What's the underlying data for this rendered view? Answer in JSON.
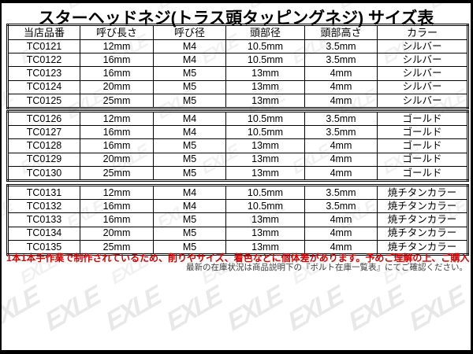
{
  "title": "スターヘッドネジ(トラス頭タッピングネジ) サイズ表",
  "table": {
    "headers": [
      "当店品番",
      "呼び長さ",
      "呼び径",
      "頭部径",
      "頭部高さ",
      "カラー"
    ],
    "groups": [
      {
        "rows": [
          [
            "TC0121",
            "12mm",
            "M4",
            "10.5mm",
            "3.5mm",
            "シルバー"
          ],
          [
            "TC0122",
            "16mm",
            "M4",
            "10.5mm",
            "3.5mm",
            "シルバー"
          ],
          [
            "TC0123",
            "16mm",
            "M5",
            "13mm",
            "4mm",
            "シルバー"
          ],
          [
            "TC0124",
            "20mm",
            "M5",
            "13mm",
            "4mm",
            "シルバー"
          ],
          [
            "TC0125",
            "25mm",
            "M5",
            "13mm",
            "4mm",
            "シルバー"
          ]
        ]
      },
      {
        "rows": [
          [
            "TC0126",
            "12mm",
            "M4",
            "10.5mm",
            "3.5mm",
            "ゴールド"
          ],
          [
            "TC0127",
            "16mm",
            "M4",
            "10.5mm",
            "3.5mm",
            "ゴールド"
          ],
          [
            "TC0128",
            "16mm",
            "M5",
            "13mm",
            "4mm",
            "ゴールド"
          ],
          [
            "TC0129",
            "20mm",
            "M5",
            "13mm",
            "4mm",
            "ゴールド"
          ],
          [
            "TC0130",
            "25mm",
            "M5",
            "13mm",
            "4mm",
            "ゴールド"
          ]
        ]
      },
      {
        "rows": [
          [
            "TC0131",
            "12mm",
            "M4",
            "10.5mm",
            "3.5mm",
            "焼チタンカラー"
          ],
          [
            "TC0132",
            "16mm",
            "M4",
            "10.5mm",
            "3.5mm",
            "焼チタンカラー"
          ],
          [
            "TC0133",
            "16mm",
            "M5",
            "13mm",
            "4mm",
            "焼チタンカラー"
          ],
          [
            "TC0134",
            "20mm",
            "M5",
            "13mm",
            "4mm",
            "焼チタンカラー"
          ],
          [
            "TC0135",
            "25mm",
            "M5",
            "13mm",
            "4mm",
            "焼チタンカラー"
          ]
        ]
      }
    ]
  },
  "notes": {
    "handmade": "1本1本手作業で制作されているため、削りやサイズ、着色などに個体差があります。予めご理解の上、ご購入ください。",
    "stock": "最新の在庫状況は商品説明下の『ボルト在庫一覧表』にてご確認ください。"
  },
  "watermark": {
    "text": "EXLE"
  },
  "colors": {
    "note_red": "#d60000",
    "note_gray": "#3a3a3a",
    "frame": "#000000",
    "background": "#ffffff"
  }
}
